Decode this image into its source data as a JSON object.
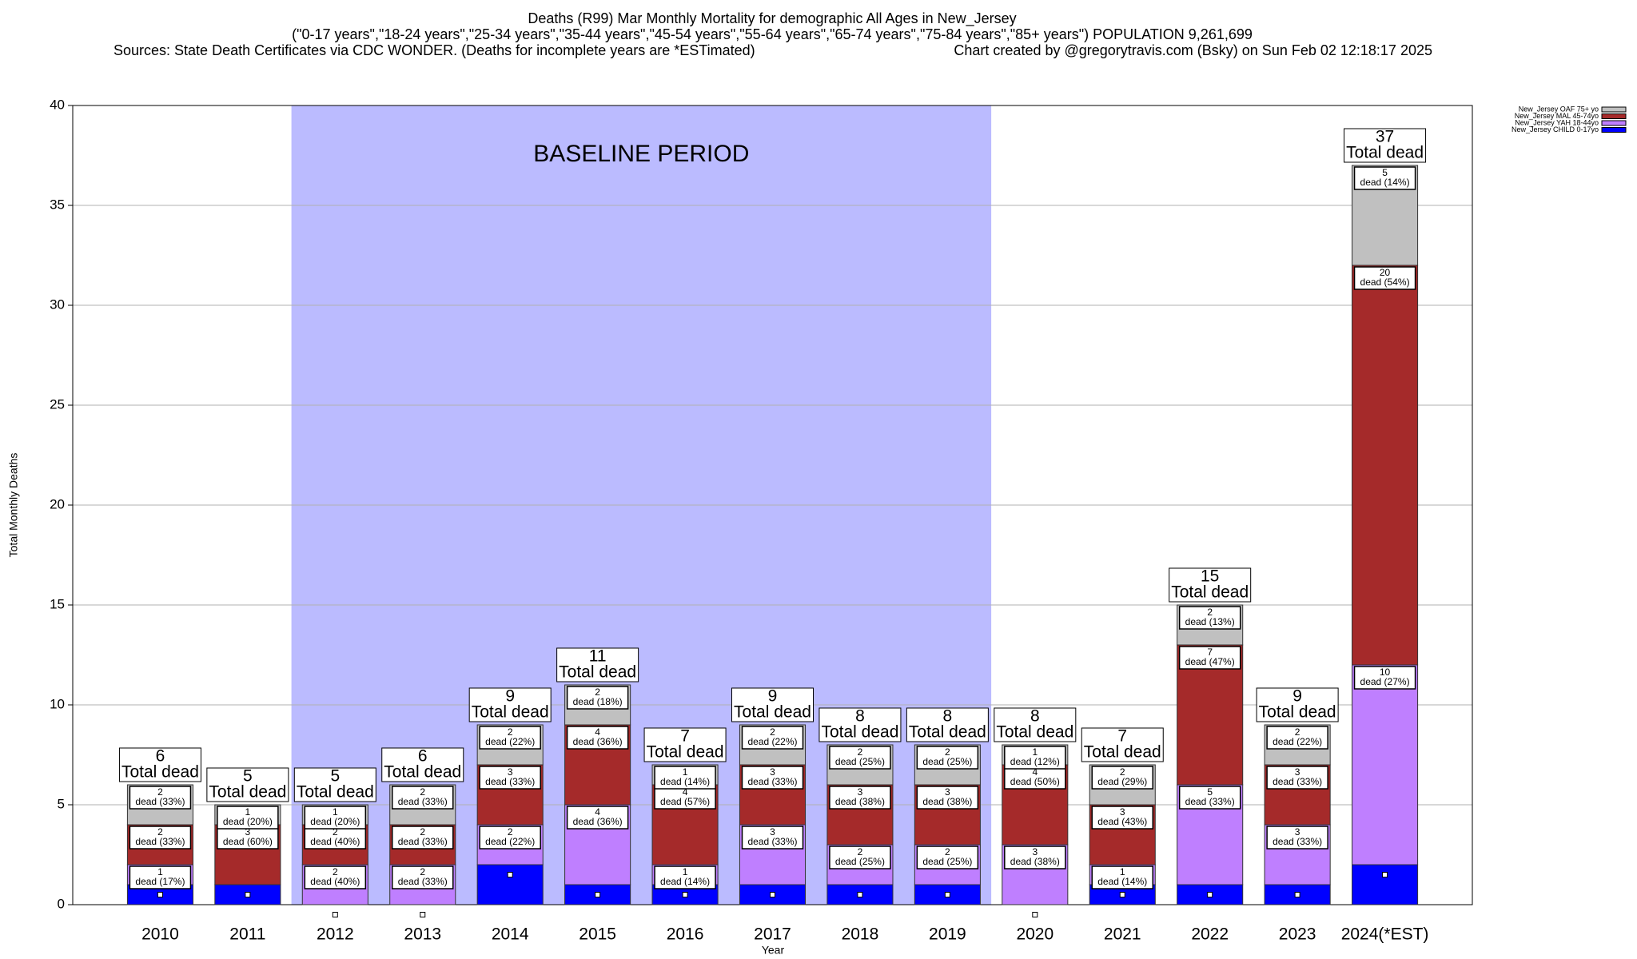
{
  "chart_data": {
    "type": "stacked-bar",
    "title": "Deaths (R99) Mar Monthly Mortality for demographic All Ages in New_Jersey",
    "subtitle": "(\"0-17 years\",\"18-24 years\",\"25-34 years\",\"35-44 years\",\"45-54 years\",\"55-64 years\",\"65-74 years\",\"75-84 years\",\"85+ years\") POPULATION 9,261,699",
    "sources": "Sources: State Death Certificates via CDC WONDER. (Deaths for incomplete years are *ESTimated)",
    "credit": "Chart created by @gregorytravis.com (Bsky) on Sun Feb 02 12:18:17 2025",
    "annotation": "BASELINE PERIOD",
    "x_label": "Year",
    "y_label": "Total Monthly Deaths",
    "categories": [
      "2010",
      "2011",
      "2012",
      "2013",
      "2014",
      "2015",
      "2016",
      "2017",
      "2018",
      "2019",
      "2020",
      "2021",
      "2022",
      "2023",
      "2024(*EST)"
    ],
    "series": [
      {
        "name": "New_Jersey CHILD 0-17yo",
        "color": "#0000ff",
        "values": [
          1,
          1,
          0,
          0,
          2,
          1,
          1,
          1,
          1,
          1,
          0,
          1,
          1,
          1,
          2
        ]
      },
      {
        "name": "New_Jersey YAH 18-44yo",
        "color": "#bf7fff",
        "values": [
          1,
          0,
          2,
          2,
          2,
          4,
          1,
          3,
          2,
          2,
          3,
          1,
          5,
          3,
          10
        ],
        "pct_labels": [
          "dead (17%)",
          null,
          "dead (40%)",
          "dead (33%)",
          "dead (22%)",
          "dead (36%)",
          "dead (14%)",
          "dead (33%)",
          "dead (25%)",
          "dead (25%)",
          "dead (38%)",
          "dead (14%)",
          "dead (33%)",
          "dead (33%)",
          "dead (27%)"
        ]
      },
      {
        "name": "New_Jersey MAL 45-74yo",
        "color": "#a52a2a",
        "values": [
          2,
          3,
          2,
          2,
          3,
          4,
          4,
          3,
          3,
          3,
          4,
          3,
          7,
          3,
          20
        ],
        "pct_labels": [
          "dead (33%)",
          "dead (60%)",
          "dead (40%)",
          "dead (33%)",
          "dead (33%)",
          "dead (36%)",
          "dead (57%)",
          "dead (33%)",
          "dead (38%)",
          "dead (38%)",
          "dead (50%)",
          "dead (43%)",
          "dead (47%)",
          "dead (33%)",
          "dead (54%)"
        ]
      },
      {
        "name": "New_Jersey OAF 75+ yo",
        "color": "#c0c0c0",
        "values": [
          2,
          1,
          1,
          2,
          2,
          2,
          1,
          2,
          2,
          2,
          1,
          2,
          2,
          2,
          5
        ],
        "pct_labels": [
          "dead (33%)",
          "dead (20%)",
          "dead (20%)",
          "dead (33%)",
          "dead (22%)",
          "dead (18%)",
          "dead (14%)",
          "dead (22%)",
          "dead (25%)",
          "dead (25%)",
          "dead (12%)",
          "dead (29%)",
          "dead (13%)",
          "dead (22%)",
          "dead (14%)"
        ]
      }
    ],
    "totals": [
      6,
      5,
      5,
      6,
      9,
      11,
      7,
      9,
      8,
      8,
      8,
      7,
      15,
      9,
      37
    ],
    "totals_label": "Total dead",
    "ylim": [
      0,
      40
    ],
    "yticks": [
      0,
      5,
      10,
      15,
      20,
      25,
      30,
      35,
      40
    ],
    "grid": true,
    "legend": "top-right"
  }
}
